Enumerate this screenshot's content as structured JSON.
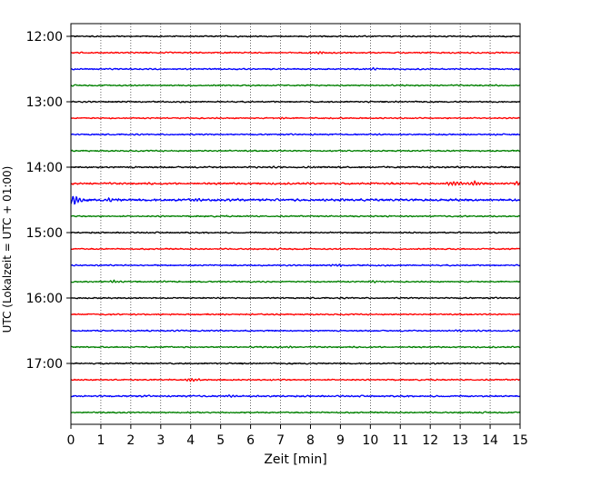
{
  "chart_data": {
    "type": "line",
    "title": "",
    "xlabel": "Zeit  [min]",
    "ylabel": "UTC (Lokalzeit = UTC + 01:00)",
    "xlim": [
      0,
      15
    ],
    "x_ticks": [
      "0",
      "1",
      "2",
      "3",
      "4",
      "5",
      "6",
      "7",
      "8",
      "9",
      "10",
      "11",
      "12",
      "13",
      "14",
      "15"
    ],
    "y_ticks": [
      "12:00",
      "13:00",
      "14:00",
      "15:00",
      "16:00",
      "17:00"
    ],
    "grid": "vertical-dotted",
    "color_cycle": [
      "#000000",
      "#ff0000",
      "#0000ff",
      "#008000"
    ],
    "series": [
      {
        "start": "12:00",
        "amplitude": 0.6
      },
      {
        "start": "12:15",
        "amplitude": 0.6,
        "events": [
          {
            "t": 8.3,
            "amp": 1.5
          }
        ]
      },
      {
        "start": "12:30",
        "amplitude": 0.6,
        "events": [
          {
            "t": 10.1,
            "amp": 1.2
          }
        ]
      },
      {
        "start": "12:45",
        "amplitude": 0.6
      },
      {
        "start": "13:00",
        "amplitude": 0.6
      },
      {
        "start": "13:15",
        "amplitude": 0.6,
        "events": [
          {
            "t": 7.0,
            "amp": 1.0
          }
        ]
      },
      {
        "start": "13:30",
        "amplitude": 0.6
      },
      {
        "start": "13:45",
        "amplitude": 0.6
      },
      {
        "start": "14:00",
        "amplitude": 0.7
      },
      {
        "start": "14:15",
        "amplitude": 0.8,
        "events": [
          {
            "t": 12.8,
            "amp": 3.0
          },
          {
            "t": 13.5,
            "amp": 3.0
          },
          {
            "t": 14.9,
            "amp": 2.5
          }
        ]
      },
      {
        "start": "14:30",
        "amplitude": 1.0,
        "events": [
          {
            "t": 0.1,
            "amp": 6.0
          },
          {
            "t": 1.3,
            "amp": 2.0
          },
          {
            "t": 4.2,
            "amp": 1.5
          }
        ]
      },
      {
        "start": "14:45",
        "amplitude": 0.6
      },
      {
        "start": "15:00",
        "amplitude": 0.6
      },
      {
        "start": "15:15",
        "amplitude": 0.6
      },
      {
        "start": "15:30",
        "amplitude": 0.6,
        "events": [
          {
            "t": 8.95,
            "amp": 1.5
          }
        ]
      },
      {
        "start": "15:45",
        "amplitude": 0.6,
        "events": [
          {
            "t": 1.45,
            "amp": 1.5
          },
          {
            "t": 10.1,
            "amp": 1.5
          }
        ]
      },
      {
        "start": "16:00",
        "amplitude": 0.6
      },
      {
        "start": "16:15",
        "amplitude": 0.6
      },
      {
        "start": "16:30",
        "amplitude": 0.6,
        "events": [
          {
            "t": 12.8,
            "amp": 1.2
          }
        ]
      },
      {
        "start": "16:45",
        "amplitude": 0.6,
        "events": [
          {
            "t": 7.3,
            "amp": 1.3
          }
        ]
      },
      {
        "start": "17:00",
        "amplitude": 0.6
      },
      {
        "start": "17:15",
        "amplitude": 0.6,
        "events": [
          {
            "t": 4.05,
            "amp": 2.0
          }
        ]
      },
      {
        "start": "17:30",
        "amplitude": 0.7,
        "events": [
          {
            "t": 5.2,
            "amp": 1.2
          }
        ]
      },
      {
        "start": "17:45",
        "amplitude": 0.6
      }
    ]
  }
}
